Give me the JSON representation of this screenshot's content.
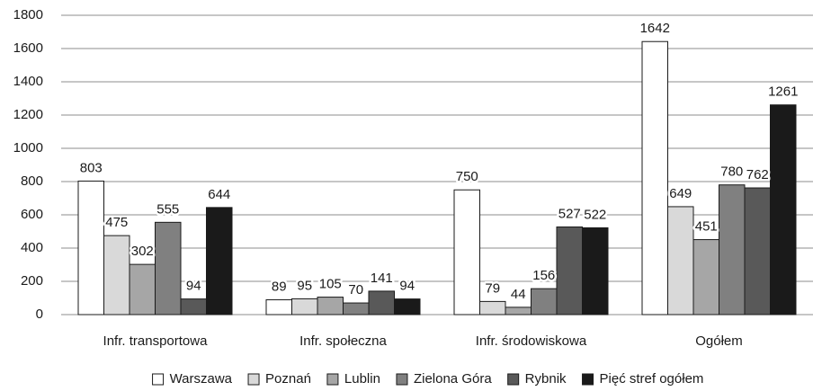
{
  "chart_data": {
    "type": "bar",
    "categories": [
      "Infr. transportowa",
      "Infr. społeczna",
      "Infr. środowiskowa",
      "Ogółem"
    ],
    "series": [
      {
        "name": "Warszawa",
        "color": "#ffffff",
        "values": [
          803,
          89,
          750,
          1642
        ]
      },
      {
        "name": "Poznań",
        "color": "#d9d9d9",
        "values": [
          475,
          95,
          79,
          649
        ]
      },
      {
        "name": "Lublin",
        "color": "#a6a6a6",
        "values": [
          302,
          105,
          44,
          451
        ]
      },
      {
        "name": "Zielona Góra",
        "color": "#808080",
        "values": [
          555,
          70,
          156,
          780
        ]
      },
      {
        "name": "Rybnik",
        "color": "#595959",
        "values": [
          94,
          141,
          527,
          762
        ]
      },
      {
        "name": "Pięć stref ogółem",
        "color": "#1a1a1a",
        "values": [
          644,
          94,
          522,
          1261
        ]
      }
    ],
    "ylim": [
      0,
      1800
    ],
    "yticks": [
      0,
      200,
      400,
      600,
      800,
      1000,
      1200,
      1400,
      1600,
      1800
    ],
    "grid": true,
    "legend": "bottom"
  }
}
